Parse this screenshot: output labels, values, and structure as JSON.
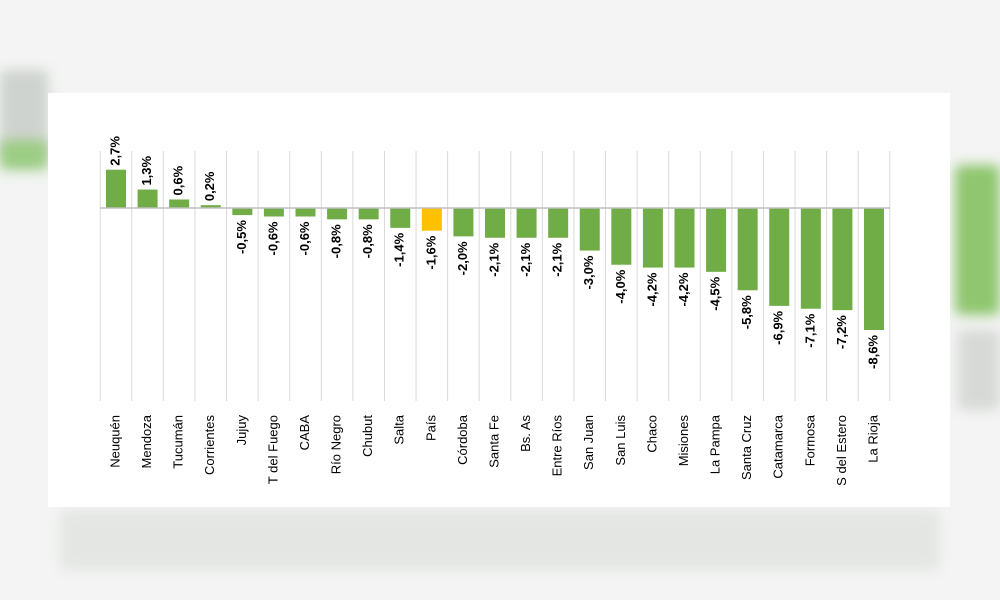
{
  "chart_data": {
    "type": "bar",
    "title": "",
    "xlabel": "",
    "ylabel": "",
    "ylim": [
      -8.6,
      2.7
    ],
    "grid": "vertical",
    "legend": "none",
    "categories": [
      "Neuquén",
      "Mendoza",
      "Tucumán",
      "Corrientes",
      "Jujuy",
      "T del Fuego",
      "CABA",
      "Río Negro",
      "Chubut",
      "Salta",
      "País",
      "Córdoba",
      "Santa Fe",
      "Bs. As",
      "Entre Ríos",
      "San Juan",
      "San Luis",
      "Chaco",
      "Misiones",
      "La Pampa",
      "Santa Cruz",
      "Catamarca",
      "Formosa",
      "S del Estero",
      "La Rioja"
    ],
    "values": [
      2.7,
      1.3,
      0.6,
      0.2,
      -0.5,
      -0.6,
      -0.6,
      -0.8,
      -0.8,
      -1.4,
      -1.6,
      -2.0,
      -2.1,
      -2.1,
      -2.1,
      -3.0,
      -4.0,
      -4.2,
      -4.2,
      -4.5,
      -5.8,
      -6.9,
      -7.1,
      -7.2,
      -8.6
    ],
    "data_labels": [
      "2,7%",
      "1,3%",
      "0,6%",
      "0,2%",
      "-0,5%",
      "-0,6%",
      "-0,6%",
      "-0,8%",
      "-0,8%",
      "-1,4%",
      "-1,6%",
      "-2,0%",
      "-2,1%",
      "-2,1%",
      "-2,1%",
      "-3,0%",
      "-4,0%",
      "-4,2%",
      "-4,2%",
      "-4,5%",
      "-5,8%",
      "-6,9%",
      "-7,1%",
      "-7,2%",
      "-8,6%"
    ],
    "highlight_category": "País",
    "colors": {
      "bar": "#70ad47",
      "highlight": "#ffc000",
      "grid": "#d9d9d9",
      "axis": "#bfbfbf",
      "text": "#000000"
    }
  }
}
